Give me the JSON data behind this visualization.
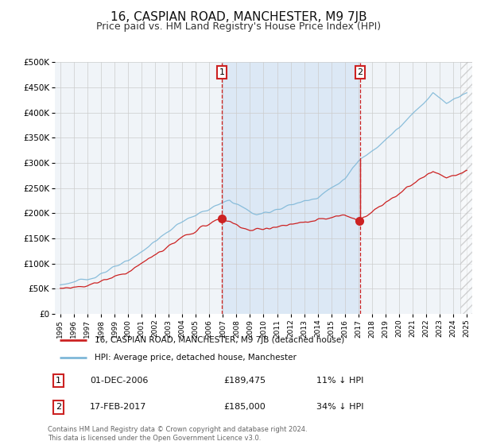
{
  "title": "16, CASPIAN ROAD, MANCHESTER, M9 7JB",
  "subtitle": "Price paid vs. HM Land Registry's House Price Index (HPI)",
  "title_fontsize": 11,
  "subtitle_fontsize": 9,
  "ylim": [
    0,
    500000
  ],
  "yticks": [
    0,
    50000,
    100000,
    150000,
    200000,
    250000,
    300000,
    350000,
    400000,
    450000,
    500000
  ],
  "ytick_labels": [
    "£0",
    "£50K",
    "£100K",
    "£150K",
    "£200K",
    "£250K",
    "£300K",
    "£350K",
    "£400K",
    "£450K",
    "£500K"
  ],
  "xlim_start": 1994.6,
  "xlim_end": 2025.4,
  "chart_bg_color": "#f0f4f8",
  "highlight_bg_color": "#dce8f5",
  "fig_bg_color": "#ffffff",
  "grid_color": "#cccccc",
  "hpi_color": "#7fb8d8",
  "property_color": "#cc2222",
  "vline_color": "#cc2222",
  "vline1_x": 2006.92,
  "vline2_x": 2017.12,
  "hatch_start": 2024.5,
  "annotation1": {
    "num": "1",
    "date": "01-DEC-2006",
    "price": "£189,475",
    "pct": "11% ↓ HPI"
  },
  "annotation2": {
    "num": "2",
    "date": "17-FEB-2017",
    "price": "£185,000",
    "pct": "34% ↓ HPI"
  },
  "legend1": "16, CASPIAN ROAD, MANCHESTER, M9 7JB (detached house)",
  "legend2": "HPI: Average price, detached house, Manchester",
  "footer": "Contains HM Land Registry data © Crown copyright and database right 2024.\nThis data is licensed under the Open Government Licence v3.0.",
  "purchase1_price": 189475,
  "purchase2_price": 185000,
  "purchase1_year": 2006.92,
  "purchase2_year": 2017.12
}
